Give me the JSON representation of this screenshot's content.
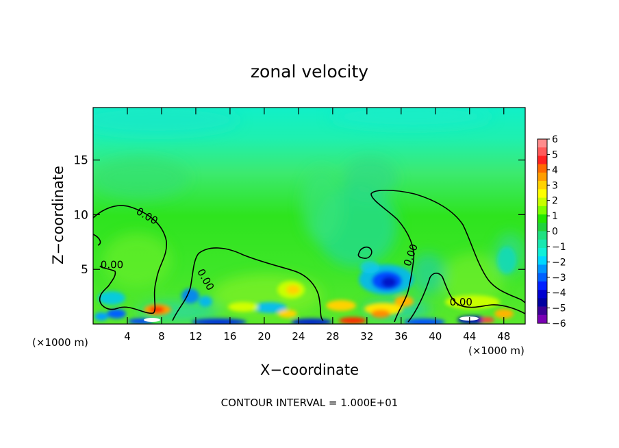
{
  "chart_data": {
    "type": "heatmap",
    "title": "zonal velocity",
    "xlabel": "X−coordinate",
    "ylabel": "Z−coordinate",
    "x_unit_left": "(×1000 m)",
    "x_unit_right": "(×1000 m)",
    "xlim": [
      0,
      50.5
    ],
    "ylim": [
      0,
      19.8
    ],
    "x_ticks": [
      4,
      8,
      12,
      16,
      20,
      24,
      28,
      32,
      36,
      40,
      44,
      48
    ],
    "x_tick_labels": [
      "4",
      "8",
      "12",
      "16",
      "20",
      "24",
      "28",
      "32",
      "36",
      "40",
      "44",
      "48"
    ],
    "y_ticks": [
      5,
      10,
      15
    ],
    "y_tick_labels": [
      "5",
      "10",
      "15"
    ],
    "contour_label": "0.00",
    "contour_label_positions": [
      [
        6.1,
        9.6
      ],
      [
        2.2,
        5.1
      ],
      [
        12.8,
        3.9
      ],
      [
        37.5,
        6.2
      ],
      [
        43.0,
        1.7
      ]
    ],
    "footer": "CONTOUR INTERVAL = 1.000E+01",
    "colorbar": {
      "levels": [
        "6",
        "5",
        "4",
        "3",
        "2",
        "1",
        "0",
        "−1",
        "−2",
        "−3",
        "−4",
        "−5",
        "−6"
      ],
      "colors": [
        "#ff8c8c",
        "#ff5a5a",
        "#ff2020",
        "#ff6a00",
        "#ff9e00",
        "#ffd200",
        "#ffff00",
        "#c8ff00",
        "#7cff00",
        "#22e600",
        "#20d23c",
        "#1fe080",
        "#17e8b0",
        "#10f0d8",
        "#00d8ff",
        "#0096ff",
        "#0060ff",
        "#0020ff",
        "#0000d0",
        "#0000a0",
        "#3c0096",
        "#7a00b4"
      ]
    },
    "features": [
      {
        "type": "jet",
        "x": 33.8,
        "z": 3.8,
        "value": -4.5
      },
      {
        "type": "jet",
        "x": 32.5,
        "z": 4.6,
        "value": -3
      },
      {
        "type": "jet",
        "x": 11.2,
        "z": 2.5,
        "value": -3
      },
      {
        "type": "jet",
        "x": 20.5,
        "z": 1.7,
        "value": -2.5
      },
      {
        "type": "jet",
        "x": 3.2,
        "z": 1.4,
        "value": -3
      },
      {
        "type": "jet",
        "x": 23.2,
        "z": 3.5,
        "value": 1.8
      },
      {
        "type": "jet",
        "x": 7.2,
        "z": 1.6,
        "value": 4
      },
      {
        "type": "jet",
        "x": 21.5,
        "z": 1.5,
        "value": 2
      },
      {
        "type": "jet",
        "x": 30.5,
        "z": 1.7,
        "value": 2.2
      },
      {
        "type": "jet",
        "x": 36.2,
        "z": 2.1,
        "value": 3
      },
      {
        "type": "jet",
        "x": 44,
        "z": 2.2,
        "value": 1.5
      },
      {
        "type": "jet",
        "x": 47.5,
        "z": 1.0,
        "value": 3
      }
    ]
  }
}
